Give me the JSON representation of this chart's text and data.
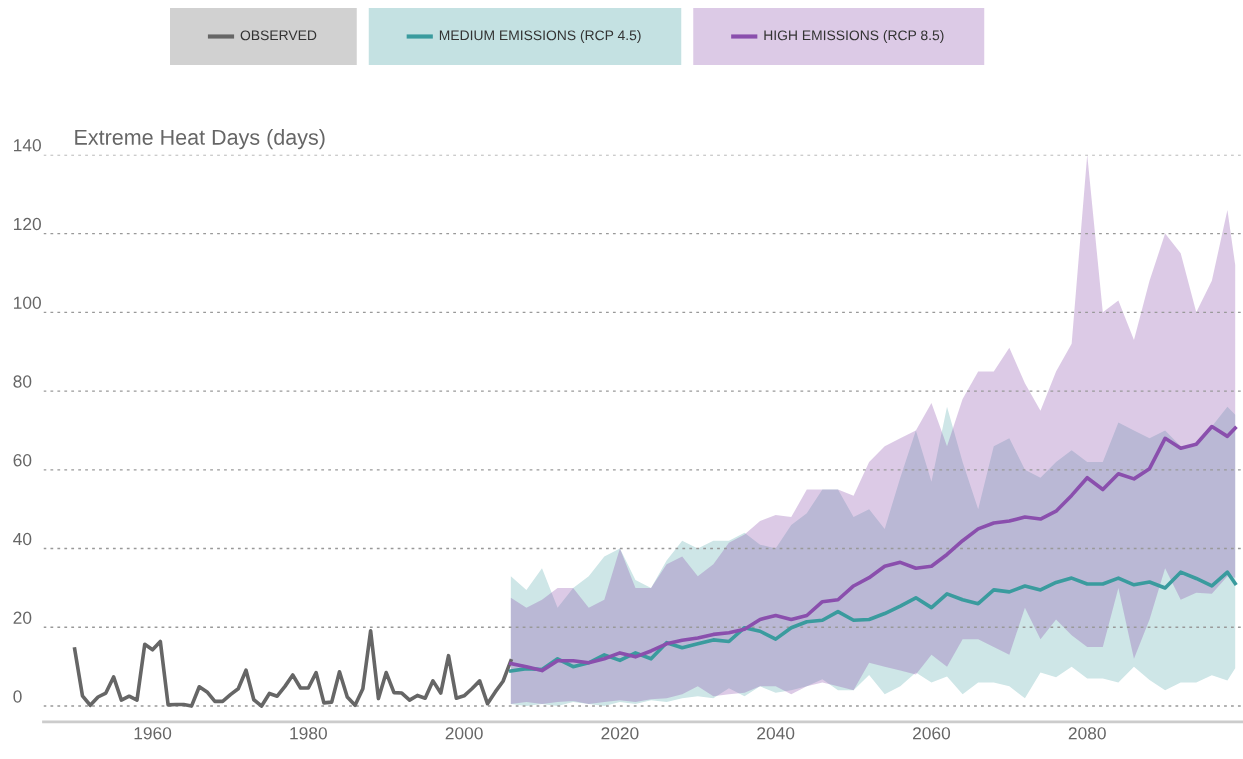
{
  "chart_data": {
    "type": "line",
    "ylabel": "Extreme Heat Days (days)",
    "xlim": [
      1946,
      2100
    ],
    "xticks": [
      1960,
      1980,
      2000,
      2020,
      2040,
      2060,
      2080
    ],
    "ylim": [
      -4,
      140
    ],
    "yticks": [
      0,
      20,
      40,
      60,
      80,
      100,
      120,
      140
    ],
    "grid": "y",
    "legend": "top",
    "line_style": "solid",
    "series": [
      {
        "name": "OBSERVED",
        "color": "#666666",
        "x": [
          1950,
          1951,
          1952,
          1953,
          1954,
          1955,
          1956,
          1957,
          1958,
          1959,
          1960,
          1961,
          1962,
          1963,
          1964,
          1965,
          1966,
          1967,
          1968,
          1969,
          1970,
          1971,
          1972,
          1973,
          1974,
          1975,
          1976,
          1977,
          1978,
          1979,
          1980,
          1981,
          1982,
          1983,
          1984,
          1985,
          1986,
          1987,
          1988,
          1989,
          1990,
          1991,
          1992,
          1993,
          1994,
          1995,
          1996,
          1997,
          1998,
          1999,
          2000,
          2001,
          2002,
          2003,
          2004,
          2005,
          2006
        ],
        "values": [
          14.5,
          2.6,
          0.2,
          2.3,
          3.3,
          7.4,
          1.5,
          2.5,
          1.5,
          15.7,
          14.3,
          16.4,
          0.3,
          0.4,
          0.4,
          0,
          4.9,
          3.6,
          1.2,
          1.2,
          2.9,
          4.4,
          9.1,
          1.6,
          0,
          3.2,
          2.5,
          5,
          7.9,
          4.6,
          4.6,
          8.5,
          0.8,
          1,
          8.7,
          2.3,
          0.2,
          4.4,
          19.1,
          1.9,
          8.5,
          3.4,
          3.3,
          1.5,
          2.7,
          2,
          6.4,
          3.3,
          12.8,
          2,
          2.6,
          4.4,
          6.4,
          0.6,
          3.6,
          6.3,
          11.5
        ]
      },
      {
        "name": "MEDIUM EMISSIONS (RCP 4.5)",
        "color": "#3a9b9e",
        "x": [
          2006,
          2008,
          2010,
          2012,
          2014,
          2016,
          2018,
          2020,
          2022,
          2024,
          2026,
          2028,
          2030,
          2032,
          2034,
          2036,
          2038,
          2040,
          2042,
          2044,
          2046,
          2048,
          2050,
          2052,
          2054,
          2056,
          2058,
          2060,
          2062,
          2064,
          2066,
          2068,
          2070,
          2072,
          2074,
          2076,
          2078,
          2080,
          2082,
          2084,
          2086,
          2088,
          2090,
          2092,
          2094,
          2096,
          2098,
          2099
        ],
        "values": [
          8.9,
          9.5,
          9.3,
          12,
          10,
          11,
          13,
          11.6,
          13.5,
          12,
          16.1,
          14.8,
          15.8,
          16.8,
          16.4,
          19.9,
          19,
          17,
          19.9,
          21.4,
          21.8,
          24,
          21.8,
          22,
          23.5,
          25.4,
          27.5,
          25,
          28.5,
          27,
          26,
          29.5,
          29,
          30.5,
          29.5,
          31.4,
          32.5,
          31,
          31,
          32.5,
          30.8,
          31.5,
          30,
          34,
          32.4,
          30.5,
          34,
          31.1
        ],
        "lower": [
          0.5,
          0,
          0.5,
          0,
          1,
          0.5,
          0,
          1,
          0.5,
          1.5,
          1,
          2,
          2.5,
          2,
          4.5,
          2.5,
          5,
          3.4,
          4,
          5,
          6.8,
          4,
          4,
          7.9,
          3,
          5,
          8.5,
          6,
          7.5,
          3,
          6,
          6,
          5,
          2,
          8.5,
          7.3,
          10,
          7,
          7,
          6,
          10,
          6.6,
          4,
          6,
          6,
          7.8,
          6.5,
          9.6
        ],
        "upper": [
          33,
          29.5,
          35,
          25,
          30,
          33,
          38,
          40,
          32,
          30,
          37,
          42,
          40,
          42,
          42,
          44,
          41,
          40,
          46,
          49,
          55,
          55,
          48,
          50,
          45,
          58,
          70,
          57,
          76,
          62,
          50,
          66,
          68,
          60,
          58,
          62,
          65,
          62,
          62,
          72,
          70,
          68,
          70,
          66,
          66,
          71,
          76,
          74
        ]
      },
      {
        "name": "HIGH EMISSIONS (RCP 8.5)",
        "color": "#8a4fad",
        "x": [
          2006,
          2008,
          2010,
          2012,
          2014,
          2016,
          2018,
          2020,
          2022,
          2024,
          2026,
          2028,
          2030,
          2032,
          2034,
          2036,
          2038,
          2040,
          2042,
          2044,
          2046,
          2048,
          2050,
          2052,
          2054,
          2056,
          2058,
          2060,
          2062,
          2064,
          2066,
          2068,
          2070,
          2072,
          2074,
          2076,
          2078,
          2080,
          2082,
          2084,
          2086,
          2088,
          2090,
          2092,
          2094,
          2096,
          2098,
          2099
        ],
        "values": [
          10.8,
          10,
          9,
          11.5,
          11.5,
          11,
          12,
          13.5,
          12.5,
          14,
          15.8,
          16.7,
          17.3,
          18.2,
          18.6,
          19.5,
          22,
          23,
          22,
          23,
          26.5,
          27,
          30.5,
          32.6,
          35.5,
          36.5,
          35,
          35.5,
          38.5,
          42,
          45,
          46.5,
          47,
          48,
          47.5,
          49.5,
          53.5,
          58,
          55,
          59,
          57.7,
          60.3,
          68,
          65.5,
          66.5,
          71,
          68.5,
          70.6
        ],
        "lower": [
          0.5,
          1,
          0.5,
          1,
          1.3,
          0.5,
          1,
          1.5,
          1,
          1.7,
          2,
          3,
          5,
          2.5,
          3,
          3.4,
          5,
          5,
          3,
          5,
          6,
          5,
          4,
          11,
          10,
          9,
          8,
          13,
          10,
          17,
          17,
          15,
          13,
          25,
          17,
          22,
          18,
          15,
          15,
          30,
          12,
          22,
          35,
          27,
          28.8,
          28.5,
          33,
          32.6
        ],
        "upper": [
          27.5,
          25,
          27,
          30,
          30,
          25,
          27,
          40,
          30,
          30,
          36,
          38,
          33,
          36,
          41.5,
          43.6,
          47,
          48.5,
          48,
          55,
          55,
          55,
          53.4,
          62,
          66,
          68,
          70,
          77,
          66,
          78,
          85,
          85,
          91,
          82,
          75,
          85,
          92,
          140,
          100,
          103,
          93,
          108,
          120,
          115,
          100,
          108,
          126,
          112
        ]
      }
    ]
  }
}
